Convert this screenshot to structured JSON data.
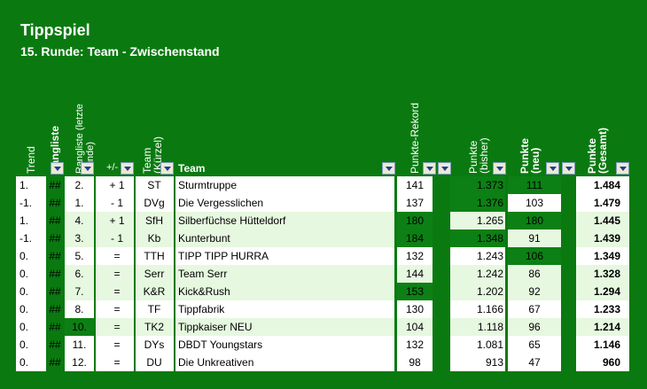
{
  "title": "Tippspiel",
  "subtitle": "15. Runde: Team - Zwischenstand",
  "headers": {
    "trend": "Trend",
    "rangliste": "Rangliste",
    "rangliste_letzte": "Rangliste (letzte Runde)",
    "plusminus": "+/-",
    "team_kurz": "Team (Kürzel)",
    "team": "Team",
    "rekord": "Punkte-Rekord",
    "bisher": "Punkte (bisher)",
    "neu": "Punkte (neu)",
    "gesamt": "Punkte (Gesamt)"
  },
  "rows": [
    {
      "trend": "1.",
      "rank": "##",
      "prev": "2.",
      "pm": "+ 1",
      "kurz": "ST",
      "team": "Sturmtruppe",
      "rekord": "141",
      "bisher": "1.373",
      "neu": "111",
      "gesamt": "1.484"
    },
    {
      "trend": "-1.",
      "rank": "##",
      "prev": "1.",
      "pm": "- 1",
      "kurz": "DVg",
      "team": "Die Vergesslichen",
      "rekord": "137",
      "bisher": "1.376",
      "neu": "103",
      "gesamt": "1.479"
    },
    {
      "trend": "1.",
      "rank": "##",
      "prev": "4.",
      "pm": "+ 1",
      "kurz": "SfH",
      "team": "Silberfüchse Hütteldorf",
      "rekord": "180",
      "bisher": "1.265",
      "neu": "180",
      "gesamt": "1.445"
    },
    {
      "trend": "-1.",
      "rank": "##",
      "prev": "3.",
      "pm": "- 1",
      "kurz": "Kb",
      "team": "Kunterbunt",
      "rekord": "184",
      "bisher": "1.348",
      "neu": "91",
      "gesamt": "1.439"
    },
    {
      "trend": "0.",
      "rank": "##",
      "prev": "5.",
      "pm": "=",
      "kurz": "TTH",
      "team": "TIPP TIPP HURRA",
      "rekord": "132",
      "bisher": "1.243",
      "neu": "106",
      "gesamt": "1.349"
    },
    {
      "trend": "0.",
      "rank": "##",
      "prev": "6.",
      "pm": "=",
      "kurz": "Serr",
      "team": "Team Serr",
      "rekord": "144",
      "bisher": "1.242",
      "neu": "86",
      "gesamt": "1.328"
    },
    {
      "trend": "0.",
      "rank": "##",
      "prev": "7.",
      "pm": "=",
      "kurz": "K&R",
      "team": "Kick&Rush",
      "rekord": "153",
      "bisher": "1.202",
      "neu": "92",
      "gesamt": "1.294"
    },
    {
      "trend": "0.",
      "rank": "##",
      "prev": "8.",
      "pm": "=",
      "kurz": "TF",
      "team": "Tippfabrik",
      "rekord": "130",
      "bisher": "1.166",
      "neu": "67",
      "gesamt": "1.233"
    },
    {
      "trend": "0.",
      "rank": "##",
      "prev": "10.",
      "pm": "=",
      "kurz": "TK2",
      "team": "Tippkaiser NEU",
      "rekord": "104",
      "bisher": "1.118",
      "neu": "96",
      "gesamt": "1.214"
    },
    {
      "trend": "0.",
      "rank": "##",
      "prev": "11.",
      "pm": "=",
      "kurz": "DYs",
      "team": "DBDT Youngstars",
      "rekord": "132",
      "bisher": "1.081",
      "neu": "65",
      "gesamt": "1.146"
    },
    {
      "trend": "0.",
      "rank": "##",
      "prev": "12.",
      "pm": "=",
      "kurz": "DU",
      "team": "Die Unkreativen",
      "rekord": "98",
      "bisher": "913",
      "neu": "47",
      "gesamt": "960"
    }
  ]
}
